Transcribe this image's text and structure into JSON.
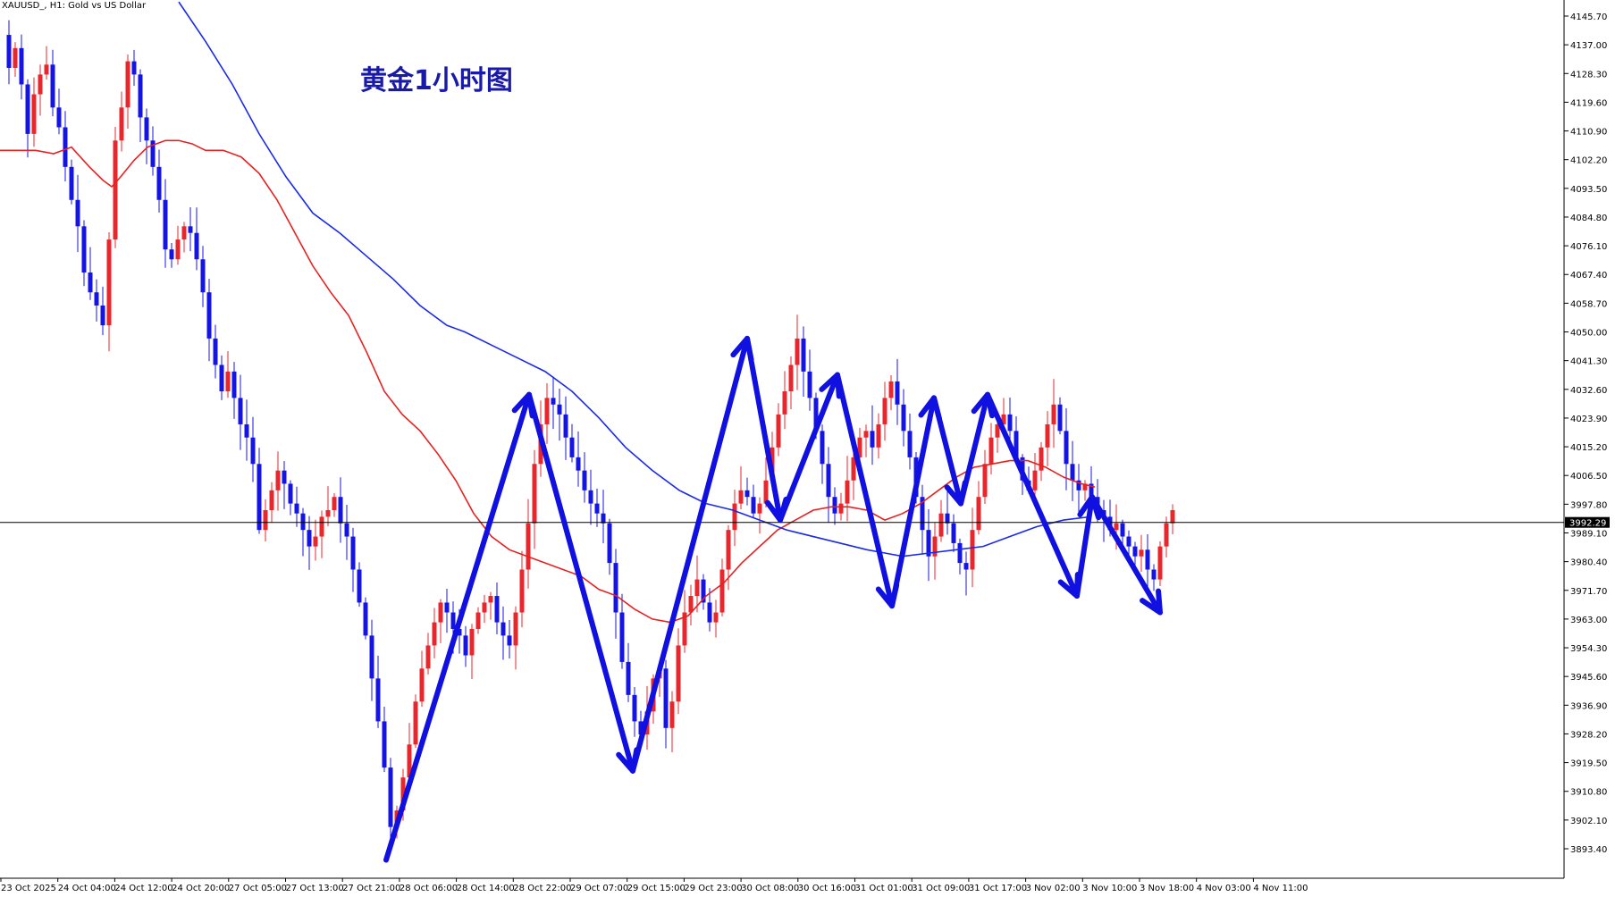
{
  "symbol_label": "XAUUSD_, H1:  Gold vs US Dollar",
  "annotation_title": "黄金1小时图",
  "current_price_label": "3992.29",
  "colors": {
    "bull_candle": "#e8262b",
    "bear_candle": "#1414e6",
    "ma_fast": "#e82020",
    "ma_slow": "#1a2ae8",
    "zigzag_arrows": "#1010e0",
    "price_line": "#000000"
  },
  "chart_data": {
    "type": "candlestick",
    "instrument": "XAUUSD_",
    "timeframe": "H1",
    "ylim": [
      3887,
      4150
    ],
    "y_ticks": [
      "4145.70",
      "4137.00",
      "4128.30",
      "4119.60",
      "4110.90",
      "4102.20",
      "4093.50",
      "4084.80",
      "4076.10",
      "4067.40",
      "4058.70",
      "4050.00",
      "4041.30",
      "4032.60",
      "4023.90",
      "4015.20",
      "4006.50",
      "3997.80",
      "3989.10",
      "3980.40",
      "3971.70",
      "3963.00",
      "3954.30",
      "3945.60",
      "3936.90",
      "3928.20",
      "3919.50",
      "3910.80",
      "3902.10",
      "3893.40"
    ],
    "x_ticks": [
      "23 Oct 2025",
      "24 Oct 04:00",
      "24 Oct 12:00",
      "24 Oct 20:00",
      "27 Oct 05:00",
      "27 Oct 13:00",
      "27 Oct 21:00",
      "28 Oct 06:00",
      "28 Oct 14:00",
      "28 Oct 22:00",
      "29 Oct 07:00",
      "29 Oct 15:00",
      "29 Oct 23:00",
      "30 Oct 08:00",
      "30 Oct 16:00",
      "31 Oct 01:00",
      "31 Oct 09:00",
      "31 Oct 17:00",
      "3 Nov 02:00",
      "3 Nov 10:00",
      "3 Nov 18:00",
      "4 Nov 03:00",
      "4 Nov 11:00"
    ],
    "price_line": 3992.29,
    "close_path": [
      4140,
      4130,
      4136,
      4125,
      4110,
      4122,
      4128,
      4131,
      4118,
      4112,
      4100,
      4090,
      4082,
      4068,
      4062,
      4058,
      4052,
      4078,
      4108,
      4118,
      4132,
      4128,
      4115,
      4108,
      4100,
      4090,
      4075,
      4072,
      4078,
      4082,
      4080,
      4072,
      4062,
      4048,
      4040,
      4032,
      4038,
      4030,
      4022,
      4018,
      4010,
      3990,
      3996,
      4002,
      4008,
      4004,
      3998,
      3995,
      3990,
      3985,
      3988,
      3994,
      3996,
      4000,
      3992,
      3988,
      3978,
      3968,
      3958,
      3945,
      3932,
      3918,
      3900,
      3905,
      3915,
      3925,
      3938,
      3948,
      3955,
      3962,
      3968,
      3965,
      3960,
      3958,
      3952,
      3960,
      3965,
      3968,
      3970,
      3962,
      3958,
      3955,
      3965,
      3978,
      3992,
      4010,
      4022,
      4030,
      4028,
      4025,
      4018,
      4012,
      4008,
      4002,
      3998,
      3995,
      3992,
      3980,
      3965,
      3950,
      3940,
      3932,
      3928,
      3935,
      3945,
      3948,
      3930,
      3938,
      3955,
      3965,
      3970,
      3975,
      3968,
      3962,
      3965,
      3978,
      3990,
      3998,
      4002,
      4000,
      3995,
      3998,
      4005,
      4015,
      4025,
      4032,
      4040,
      4048,
      4038,
      4030,
      4020,
      4010,
      4000,
      3995,
      3998,
      4005,
      4012,
      4018,
      4020,
      4015,
      4022,
      4030,
      4035,
      4028,
      4020,
      4012,
      4000,
      3990,
      3982,
      3988,
      3995,
      3992,
      3986,
      3980,
      3978,
      3990,
      4000,
      4010,
      4018,
      4022,
      4025,
      4020,
      4012,
      4005,
      4002,
      4008,
      4015,
      4022,
      4028,
      4020,
      4010,
      4005,
      4002,
      4004,
      4000,
      3996,
      3994,
      3990,
      3992,
      3988,
      3985,
      3982,
      3984,
      3978,
      3975,
      3985,
      3992,
      3996
    ],
    "series": [
      {
        "name": "",
        "role": "moving-average-fast",
        "points": [
          [
            0,
            4105
          ],
          [
            40,
            4105
          ],
          [
            60,
            4104
          ],
          [
            80,
            4106
          ],
          [
            100,
            4100
          ],
          [
            115,
            4096
          ],
          [
            125,
            4094
          ],
          [
            135,
            4097
          ],
          [
            150,
            4102
          ],
          [
            165,
            4106
          ],
          [
            185,
            4108
          ],
          [
            200,
            4108
          ],
          [
            215,
            4107
          ],
          [
            230,
            4105
          ],
          [
            250,
            4105
          ],
          [
            270,
            4103
          ],
          [
            290,
            4098
          ],
          [
            310,
            4090
          ],
          [
            330,
            4080
          ],
          [
            350,
            4070
          ],
          [
            370,
            4062
          ],
          [
            390,
            4055
          ],
          [
            410,
            4044
          ],
          [
            430,
            4032
          ],
          [
            450,
            4025
          ],
          [
            470,
            4020
          ],
          [
            490,
            4013
          ],
          [
            510,
            4005
          ],
          [
            530,
            3995
          ],
          [
            550,
            3988
          ],
          [
            570,
            3984
          ],
          [
            590,
            3982
          ],
          [
            610,
            3980
          ],
          [
            630,
            3978
          ],
          [
            650,
            3976
          ],
          [
            670,
            3972
          ],
          [
            690,
            3970
          ],
          [
            710,
            3966
          ],
          [
            730,
            3963
          ],
          [
            750,
            3962
          ],
          [
            770,
            3964
          ],
          [
            790,
            3970
          ],
          [
            810,
            3974
          ],
          [
            830,
            3980
          ],
          [
            850,
            3985
          ],
          [
            870,
            3990
          ],
          [
            890,
            3993
          ],
          [
            910,
            3996
          ],
          [
            930,
            3997
          ],
          [
            950,
            3997
          ],
          [
            970,
            3996
          ],
          [
            990,
            3993
          ],
          [
            1010,
            3995
          ],
          [
            1030,
            3998
          ],
          [
            1050,
            4002
          ],
          [
            1070,
            4006
          ],
          [
            1090,
            4009
          ],
          [
            1110,
            4010
          ],
          [
            1130,
            4011
          ],
          [
            1150,
            4011
          ],
          [
            1170,
            4009
          ],
          [
            1190,
            4006
          ],
          [
            1210,
            4004
          ],
          [
            1225,
            4003
          ]
        ]
      },
      {
        "name": "",
        "role": "moving-average-slow",
        "points": [
          [
            200,
            4150
          ],
          [
            230,
            4138
          ],
          [
            260,
            4125
          ],
          [
            290,
            4110
          ],
          [
            320,
            4097
          ],
          [
            350,
            4086
          ],
          [
            380,
            4080
          ],
          [
            410,
            4073
          ],
          [
            440,
            4066
          ],
          [
            470,
            4058
          ],
          [
            500,
            4052
          ],
          [
            520,
            4050
          ],
          [
            550,
            4046
          ],
          [
            580,
            4042
          ],
          [
            610,
            4038
          ],
          [
            640,
            4032
          ],
          [
            670,
            4024
          ],
          [
            700,
            4015
          ],
          [
            730,
            4008
          ],
          [
            760,
            4002
          ],
          [
            790,
            3998
          ],
          [
            820,
            3996
          ],
          [
            850,
            3993
          ],
          [
            880,
            3990
          ],
          [
            910,
            3988
          ],
          [
            940,
            3986
          ],
          [
            970,
            3984
          ],
          [
            990,
            3983
          ],
          [
            1010,
            3982
          ],
          [
            1040,
            3983
          ],
          [
            1070,
            3984
          ],
          [
            1100,
            3985
          ],
          [
            1130,
            3988
          ],
          [
            1160,
            3991
          ],
          [
            1190,
            3993
          ],
          [
            1220,
            3994
          ]
        ]
      },
      {
        "name": "",
        "role": "zigzag-arrows",
        "points": [
          [
            432,
            3890
          ],
          [
            592,
            4031
          ],
          [
            708,
            3917
          ],
          [
            836,
            4048
          ],
          [
            873,
            3993
          ],
          [
            937,
            4037
          ],
          [
            998,
            3967
          ],
          [
            1045,
            4030
          ],
          [
            1075,
            3998
          ],
          [
            1105,
            4031
          ],
          [
            1205,
            3970
          ],
          [
            1222,
            4000
          ],
          [
            1298,
            3965
          ]
        ]
      }
    ]
  }
}
